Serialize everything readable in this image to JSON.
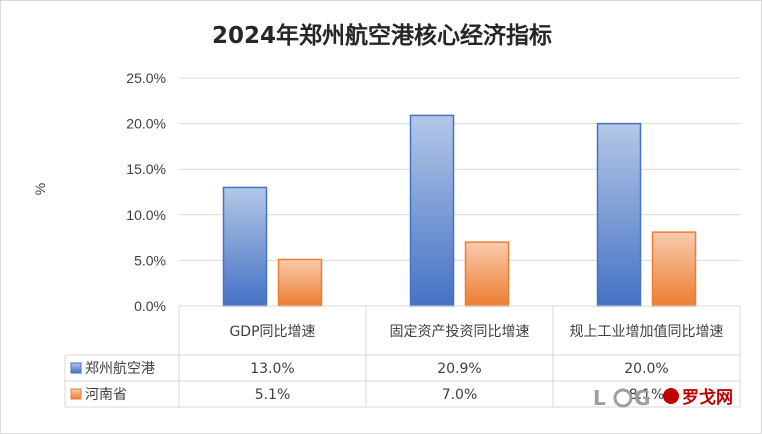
{
  "chart_data": {
    "type": "bar",
    "title": "2024年郑州航空港核心经济指标",
    "ylabel": "%",
    "ylim": [
      0,
      25
    ],
    "ytick_step": 5,
    "ytick_labels": [
      "0.0%",
      "5.0%",
      "10.0%",
      "15.0%",
      "20.0%",
      "25.0%"
    ],
    "grid": true,
    "legend": "data-table",
    "categories": [
      "GDP同比增速",
      "固定资产投资同比增速",
      "规上工业增加值同比增速"
    ],
    "series": [
      {
        "name": "郑州航空港",
        "values": [
          13.0,
          20.9,
          20.0
        ],
        "labels": [
          "13.0%",
          "20.9%",
          "20.0%"
        ],
        "color": "#4472c4",
        "color_light": "#b4c7e7"
      },
      {
        "name": "河南省",
        "values": [
          5.1,
          7.0,
          8.1
        ],
        "labels": [
          "5.1%",
          "7.0%",
          "8.1%"
        ],
        "color": "#ed7d31",
        "color_light": "#f8cbad"
      }
    ]
  },
  "watermark": {
    "text": "罗戈网",
    "logo": "LOG",
    "icon": "log-logo-icon",
    "color": "#c00000"
  }
}
